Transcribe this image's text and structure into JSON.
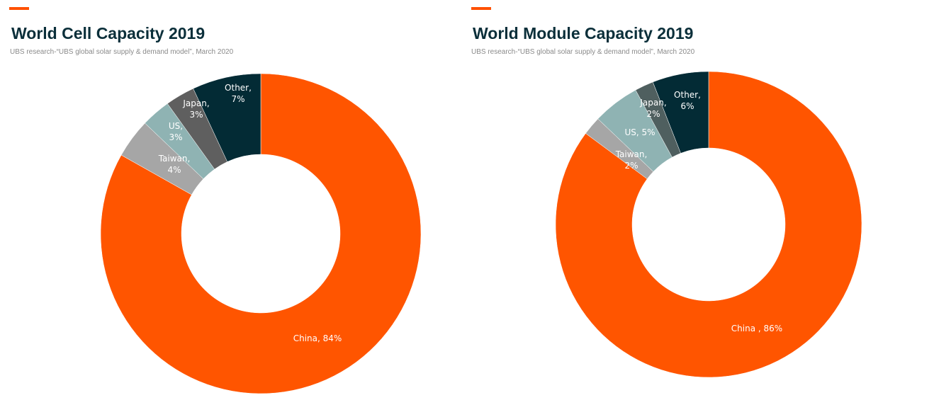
{
  "colors": {
    "accent": "#ff5000",
    "china": "#ff5500",
    "taiwan": "#a6a6a6",
    "us": "#8fb3b3",
    "japan_dark": "#5f5f5f",
    "japan_slate": "#4f5f5f",
    "other": "#032b35",
    "title": "#0b2f3a"
  },
  "chart_data": [
    {
      "type": "pie",
      "title": "World Cell Capacity 2019",
      "subtitle": "UBS  research-“UBS global solar supply &  demand model”,  March  2020",
      "legend": "none",
      "slices": [
        {
          "name": "China",
          "value": 84,
          "label_line1": "China, 84%",
          "label_line2": "",
          "color": "#ff5500"
        },
        {
          "name": "Taiwan",
          "value": 4,
          "label_line1": "Taiwan,",
          "label_line2": "4%",
          "color": "#a6a6a6"
        },
        {
          "name": "US",
          "value": 3,
          "label_line1": "US,",
          "label_line2": "3%",
          "color": "#8fb3b3"
        },
        {
          "name": "Japan",
          "value": 3,
          "label_line1": "Japan,",
          "label_line2": "3%",
          "color": "#5f5f5f"
        },
        {
          "name": "Other",
          "value": 7,
          "label_line1": "Other,",
          "label_line2": "7%",
          "color": "#032b35"
        }
      ]
    },
    {
      "type": "pie",
      "title": "World Module Capacity 2019",
      "subtitle": "UBS  research-“UBS global solar supply &  demand model”,  March  2020",
      "legend": "none",
      "slices": [
        {
          "name": "China",
          "value": 86,
          "label_line1": "China , 86%",
          "label_line2": "",
          "color": "#ff5500"
        },
        {
          "name": "Taiwan",
          "value": 2,
          "label_line1": "Taiwan,",
          "label_line2": "2%",
          "color": "#a6a6a6"
        },
        {
          "name": "US",
          "value": 5,
          "label_line1": "US, 5%",
          "label_line2": "",
          "color": "#8fb3b3"
        },
        {
          "name": "Japan",
          "value": 2,
          "label_line1": "Japan,",
          "label_line2": "2%",
          "color": "#4f5f5f"
        },
        {
          "name": "Other",
          "value": 6,
          "label_line1": "Other,",
          "label_line2": "6%",
          "color": "#032b35"
        }
      ]
    }
  ]
}
